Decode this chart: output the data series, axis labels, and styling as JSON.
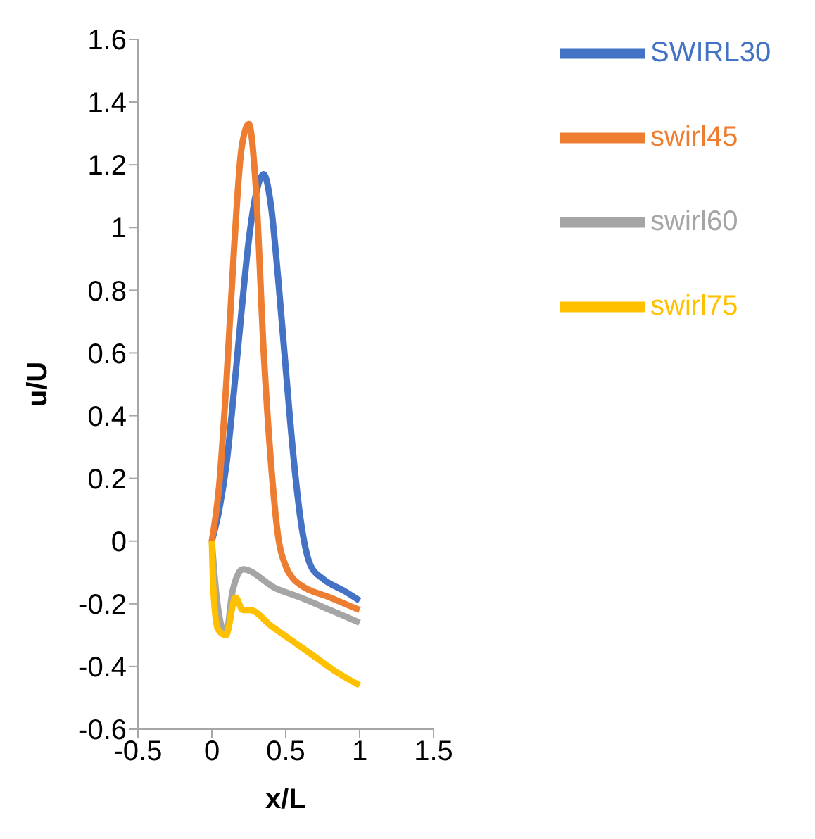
{
  "chart_data": {
    "type": "line",
    "xlabel": "x/L",
    "ylabel": "u/U",
    "xlim": [
      -0.5,
      1.5
    ],
    "xticks": [
      -0.5,
      0,
      0.5,
      1,
      1.5
    ],
    "ylim": [
      -0.6,
      1.6
    ],
    "yticks": [
      -0.6,
      -0.4,
      -0.2,
      0,
      0.2,
      0.4,
      0.6,
      0.8,
      1,
      1.2,
      1.4,
      1.6
    ],
    "grid": false,
    "legend": "top right",
    "marker": "none",
    "line_style": "solid",
    "series": [
      {
        "name": "SWIRL30",
        "color": "#4472c4",
        "x": [
          0,
          0.05,
          0.1,
          0.15,
          0.2,
          0.25,
          0.3,
          0.35,
          0.4,
          0.45,
          0.5,
          0.55,
          0.6,
          0.67,
          0.75,
          0.9,
          1
        ],
        "values": [
          0,
          0.1,
          0.25,
          0.48,
          0.73,
          0.96,
          1.11,
          1.17,
          1.07,
          0.83,
          0.55,
          0.28,
          0.07,
          -0.08,
          -0.12,
          -0.16,
          -0.19
        ]
      },
      {
        "name": "swirl45",
        "color": "#ed7d31",
        "x": [
          0,
          0.05,
          0.1,
          0.15,
          0.2,
          0.25,
          0.3,
          0.35,
          0.4,
          0.45,
          0.5,
          0.55,
          0.6,
          0.8,
          1
        ],
        "values": [
          0,
          0.18,
          0.52,
          0.93,
          1.25,
          1.33,
          1.11,
          0.61,
          0.25,
          0.01,
          -0.08,
          -0.12,
          -0.14,
          -0.18,
          -0.22
        ]
      },
      {
        "name": "swirl60",
        "color": "#a5a5a5",
        "x": [
          0,
          0.035,
          0.095,
          0.14,
          0.21,
          0.43,
          0.6,
          0.8,
          1
        ],
        "values": [
          0,
          -0.19,
          -0.3,
          -0.16,
          -0.09,
          -0.15,
          -0.18,
          -0.22,
          -0.26
        ]
      },
      {
        "name": "swirl75",
        "color": "#ffc000",
        "x": [
          0,
          0.01,
          0.04,
          0.095,
          0.16,
          0.21,
          0.26,
          0.4,
          0.58,
          0.7,
          0.85,
          1
        ],
        "values": [
          0,
          -0.15,
          -0.28,
          -0.3,
          -0.18,
          -0.22,
          -0.22,
          -0.27,
          -0.33,
          -0.37,
          -0.42,
          -0.46
        ]
      }
    ]
  }
}
